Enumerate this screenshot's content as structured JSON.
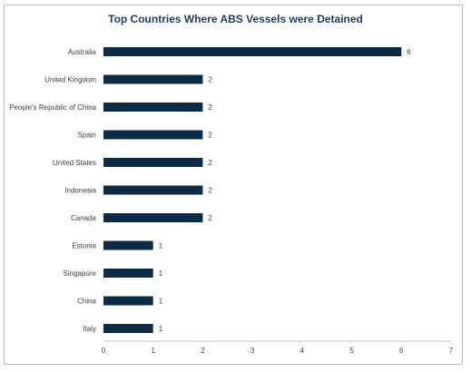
{
  "chart_data": {
    "type": "bar",
    "orientation": "horizontal",
    "title": "Top Countries Where ABS Vessels were Detained",
    "categories": [
      "Australia",
      "United Kingdom",
      "People's Republic of China",
      "Spain",
      "United States",
      "Indonesia",
      "Canada",
      "Estonia",
      "Singapore",
      "China",
      "Italy"
    ],
    "values": [
      6,
      2,
      2,
      2,
      2,
      2,
      2,
      1,
      1,
      1,
      1
    ],
    "xlim": [
      0,
      7
    ],
    "xticks": [
      0,
      1,
      2,
      3,
      4,
      5,
      6,
      7
    ],
    "xlabel": "",
    "ylabel": "",
    "grid": false,
    "legend": "none",
    "bar_color": "#0d2b45",
    "data_labels": true
  }
}
